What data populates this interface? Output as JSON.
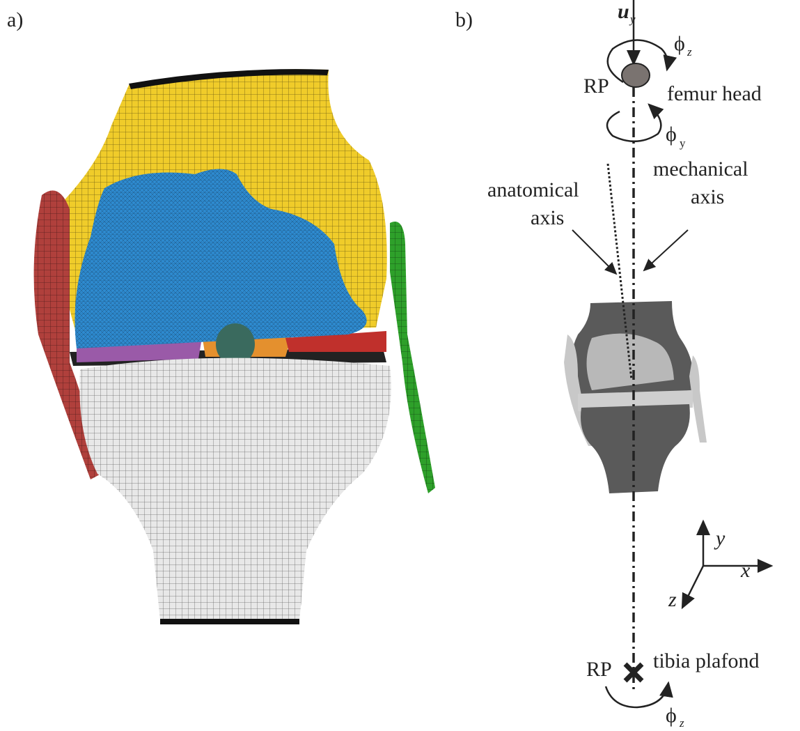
{
  "panel_a": {
    "label": "a)"
  },
  "panel_b": {
    "label": "b)",
    "femur_head": {
      "displacement": {
        "symbol": "u",
        "subscript": "y"
      },
      "rotation_z": {
        "symbol": "ϕ",
        "subscript": "z"
      },
      "reference_point": "RP",
      "name": "femur head",
      "rotation_y": {
        "symbol": "ϕ",
        "subscript": "y"
      }
    },
    "axis_labels": {
      "anatomical": [
        "anatomical",
        "axis"
      ],
      "mechanical": [
        "mechanical",
        "axis"
      ]
    },
    "coordinate_system": {
      "y": "y",
      "x": "x",
      "z": "z"
    },
    "tibia_plafond": {
      "reference_point": "RP",
      "name": "tibia plafond",
      "rotation_z": {
        "symbol": "ϕ",
        "subscript": "z"
      }
    }
  }
}
